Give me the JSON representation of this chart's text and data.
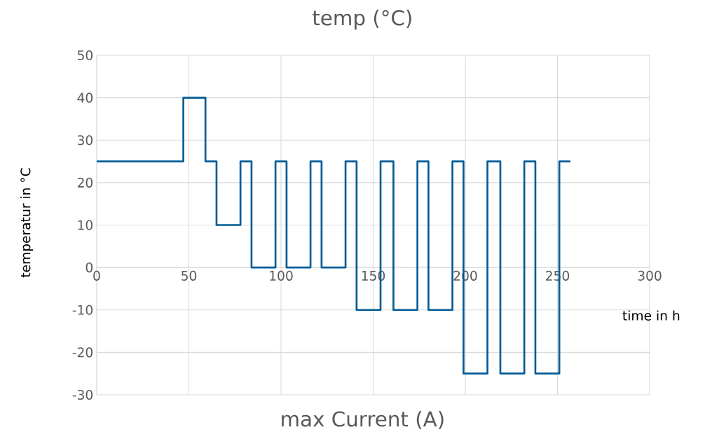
{
  "chart_data": {
    "type": "step",
    "title": "temp (°C)",
    "xlabel": "time in h",
    "ylabel": "temperatur in °C",
    "annotations": [
      "max Current (A)"
    ],
    "x": [
      0,
      47,
      59,
      65,
      78,
      84,
      97,
      103,
      116,
      122,
      135,
      141,
      154,
      161,
      174,
      180,
      193,
      199,
      212,
      219,
      232,
      238,
      251,
      257
    ],
    "values": [
      25,
      40,
      25,
      10,
      25,
      0,
      25,
      0,
      25,
      0,
      25,
      -10,
      25,
      -10,
      25,
      -10,
      25,
      -25,
      25,
      -25,
      25,
      -25,
      25,
      25
    ],
    "color": "#005b96",
    "xlim": [
      0,
      300
    ],
    "ylim": [
      -30,
      50
    ],
    "xticks": [
      0,
      50,
      100,
      150,
      200,
      250,
      300
    ],
    "yticks": [
      -30,
      -20,
      -10,
      0,
      10,
      20,
      30,
      40,
      50
    ],
    "grid": true,
    "marker": "none"
  }
}
